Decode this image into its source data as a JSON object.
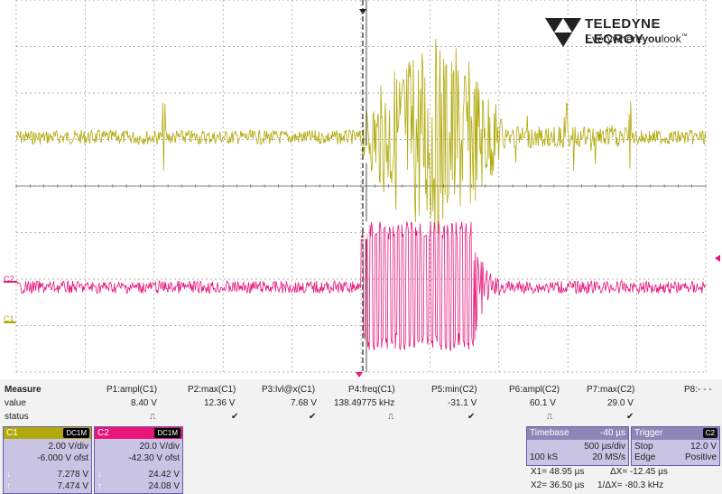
{
  "brand": {
    "name": "TELEDYNE LECROY",
    "tagline_pre": "Everywhere",
    "tagline_bold": "you",
    "tagline_post": "look",
    "tm": "™"
  },
  "channels": {
    "c1": {
      "label": "C1",
      "color": "#b2aa0c"
    },
    "c2": {
      "label": "C2",
      "color": "#e8157a"
    }
  },
  "measure": {
    "title": "Measure",
    "row_value": "value",
    "row_status": "status",
    "params": [
      {
        "name": "P1:ampl(C1)",
        "value": "8.40 V",
        "status": "pulse"
      },
      {
        "name": "P2:max(C1)",
        "value": "12.36 V",
        "status": "check"
      },
      {
        "name": "P3:lvl@x(C1)",
        "value": "7.68 V",
        "status": "check"
      },
      {
        "name": "P4:freq(C1)",
        "value": "138.49775 kHz",
        "status": "pulse"
      },
      {
        "name": "P5:min(C2)",
        "value": "-31.1 V",
        "status": "check"
      },
      {
        "name": "P6:ampl(C2)",
        "value": "60.1 V",
        "status": "pulse"
      },
      {
        "name": "P7:max(C2)",
        "value": "29.0 V",
        "status": "check"
      },
      {
        "name": "P8:- - -",
        "value": "",
        "status": ""
      }
    ]
  },
  "c1_box": {
    "label": "C1",
    "coupling": "DC1M",
    "vdiv": "2.00 V/div",
    "ofst": "-6.000 V ofst",
    "down_val": "7.278 V",
    "up_val": "7.474 V"
  },
  "c2_box": {
    "label": "C2",
    "coupling": "DC1M",
    "vdiv": "20.0 V/div",
    "ofst": "-42.30 V ofst",
    "down_val": "24.42 V",
    "up_val": "24.08 V"
  },
  "timebase": {
    "label": "Timebase",
    "delay": "-40 µs",
    "tdiv": "500 µs/div",
    "samples": "100 kS",
    "rate": "20 MS/s"
  },
  "trigger": {
    "label": "Trigger",
    "source": "C2",
    "mode": "Stop",
    "level": "12.0 V",
    "type": "Edge",
    "slope": "Positive"
  },
  "cursors": {
    "x1": "X1= 48.95 µs",
    "dx": "ΔX= -12.45 µs",
    "x2": "X2= 36.50 µs",
    "inv_dx": "1/ΔX= -80.3 kHz"
  },
  "arrows": {
    "down": "↓",
    "up": "↑"
  }
}
